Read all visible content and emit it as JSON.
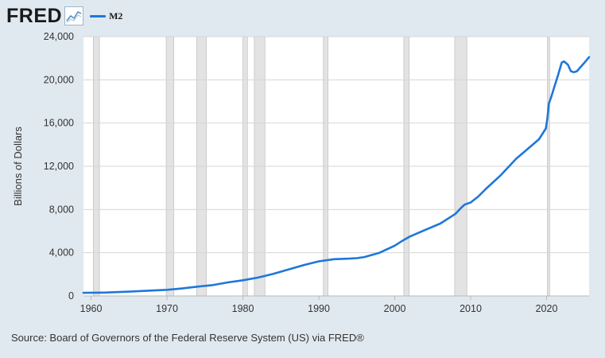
{
  "header": {
    "logo_text": "FRED",
    "logo_icon": "trend-line-icon",
    "legend_label": "M2"
  },
  "source_text": "Source: Board of Governors of the Federal Reserve System (US) via FRED®",
  "chart_data": {
    "type": "line",
    "title": "",
    "ylabel": "Billions of Dollars",
    "xlabel": "",
    "xlim": [
      1959.0,
      2025.6
    ],
    "ylim": [
      0,
      24000
    ],
    "grid": true,
    "legend_placement": "top-left",
    "x_ticks": [
      {
        "value": 1960,
        "label": "1960"
      },
      {
        "value": 1970,
        "label": "1970"
      },
      {
        "value": 1980,
        "label": "1980"
      },
      {
        "value": 1990,
        "label": "1990"
      },
      {
        "value": 2000,
        "label": "2000"
      },
      {
        "value": 2010,
        "label": "2010"
      },
      {
        "value": 2020,
        "label": "2020"
      }
    ],
    "y_ticks": [
      {
        "value": 0,
        "label": "0"
      },
      {
        "value": 4000,
        "label": "4,000"
      },
      {
        "value": 8000,
        "label": "8,000"
      },
      {
        "value": 12000,
        "label": "12,000"
      },
      {
        "value": 16000,
        "label": "16,000"
      },
      {
        "value": 20000,
        "label": "20,000"
      },
      {
        "value": 24000,
        "label": "24,000"
      }
    ],
    "recessions": [
      [
        1960.3,
        1961.1
      ],
      [
        1969.9,
        1970.9
      ],
      [
        1973.9,
        1975.2
      ],
      [
        1980.0,
        1980.6
      ],
      [
        1981.5,
        1982.9
      ],
      [
        1990.6,
        1991.2
      ],
      [
        2001.2,
        2001.9
      ],
      [
        2007.9,
        2009.5
      ],
      [
        2020.1,
        2020.4
      ]
    ],
    "series": [
      {
        "name": "M2",
        "color": "#1f77d9",
        "x": [
          1959.0,
          1962,
          1965,
          1968,
          1970,
          1972,
          1974,
          1976,
          1978,
          1980,
          1982,
          1984,
          1986,
          1988,
          1990,
          1992,
          1994,
          1995,
          1996,
          1998,
          2000,
          2001,
          2002,
          2004,
          2006,
          2008,
          2008.8,
          2009.2,
          2010,
          2011,
          2012,
          2014,
          2016,
          2018,
          2019,
          2019.9,
          2020.1,
          2020.3,
          2020.6,
          2021,
          2021.5,
          2022,
          2022.3,
          2022.8,
          2023.2,
          2023.6,
          2024,
          2024.5,
          2025,
          2025.6
        ],
        "y": [
          290,
          320,
          400,
          500,
          570,
          690,
          860,
          1000,
          1250,
          1450,
          1700,
          2050,
          2450,
          2850,
          3200,
          3400,
          3450,
          3500,
          3600,
          4000,
          4650,
          5100,
          5500,
          6100,
          6700,
          7600,
          8200,
          8450,
          8650,
          9200,
          9900,
          11200,
          12700,
          13900,
          14500,
          15500,
          16400,
          17800,
          18400,
          19300,
          20400,
          21600,
          21700,
          21400,
          20800,
          20700,
          20800,
          21200,
          21600,
          22100
        ]
      }
    ]
  }
}
